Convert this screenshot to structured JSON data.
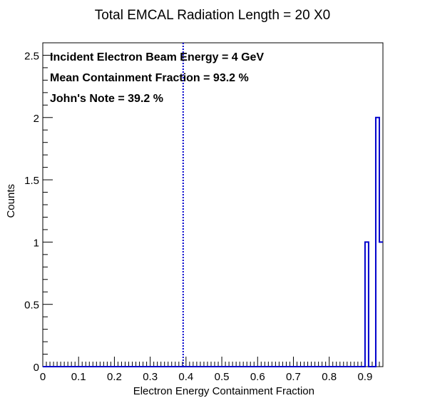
{
  "chart_data": {
    "type": "histogram",
    "title": "Total EMCAL Radiation Length = 20 X0",
    "xlabel": "Electron Energy Containment Fraction",
    "ylabel": "Counts",
    "xlim": [
      0,
      0.95
    ],
    "ylim": [
      0,
      2.6
    ],
    "x_ticks": [
      0,
      0.1,
      0.2,
      0.3,
      0.4,
      0.5,
      0.6,
      0.7,
      0.8,
      0.9
    ],
    "x_tick_labels": [
      "0",
      "0.1",
      "0.2",
      "0.3",
      "0.4",
      "0.5",
      "0.6",
      "0.7",
      "0.8",
      "0.9"
    ],
    "y_ticks": [
      0,
      0.5,
      1,
      1.5,
      2,
      2.5
    ],
    "y_tick_labels": [
      "0",
      "0.5",
      "1",
      "1.5",
      "2",
      "2.5"
    ],
    "bin_width": 0.01,
    "nonzero_bins": [
      {
        "x_low": 0.9,
        "x_high": 0.91,
        "count": 1
      },
      {
        "x_low": 0.93,
        "x_high": 0.94,
        "count": 2
      },
      {
        "x_low": 0.94,
        "x_high": 0.95,
        "count": 1
      }
    ],
    "vertical_line": {
      "x": 0.392,
      "style": "dotted",
      "color": "#0000cc"
    },
    "histogram_color": "#0000cc",
    "annotations": [
      "Incident Electron Beam Energy = 4 GeV",
      "Mean Containment Fraction = 93.2 %",
      "John's Note = 39.2 %"
    ],
    "grid": false,
    "legend": "none"
  }
}
